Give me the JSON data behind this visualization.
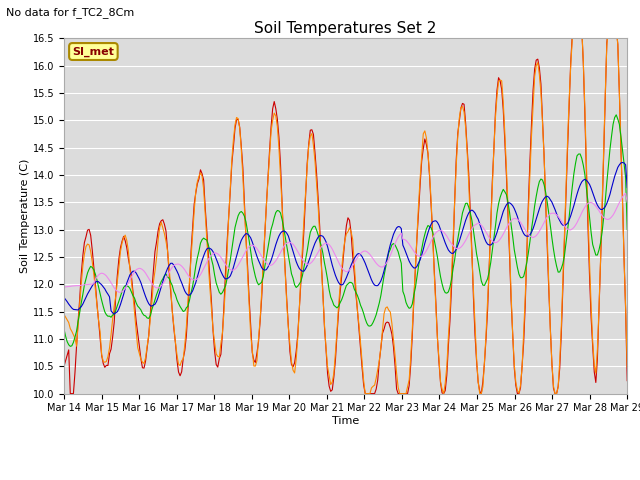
{
  "title": "Soil Temperatures Set 2",
  "subtitle": "No data for f_TC2_8Cm",
  "xlabel": "Time",
  "ylabel": "Soil Temperature (C)",
  "ylim": [
    10.0,
    16.5
  ],
  "yticks": [
    10.0,
    10.5,
    11.0,
    11.5,
    12.0,
    12.5,
    13.0,
    13.5,
    14.0,
    14.5,
    15.0,
    15.5,
    16.0,
    16.5
  ],
  "xtick_labels": [
    "Mar 14",
    "Mar 15",
    "Mar 16",
    "Mar 17",
    "Mar 18",
    "Mar 19",
    "Mar 20",
    "Mar 21",
    "Mar 22",
    "Mar 23",
    "Mar 24",
    "Mar 25",
    "Mar 26",
    "Mar 27",
    "Mar 28",
    "Mar 29"
  ],
  "legend_label": "SI_met",
  "legend_box_color": "#ffff99",
  "legend_box_border": "#aa8800",
  "legend_text_color": "#880000",
  "line_colors": {
    "TC2_2Cm": "#cc0000",
    "TC2_4Cm": "#ff8800",
    "TC2_16Cm": "#00bb00",
    "TC2_32Cm": "#0000cc",
    "TC2_50Cm": "#ee88ee"
  },
  "plot_bg": "#dcdcdc",
  "grid_color": "#ffffff"
}
